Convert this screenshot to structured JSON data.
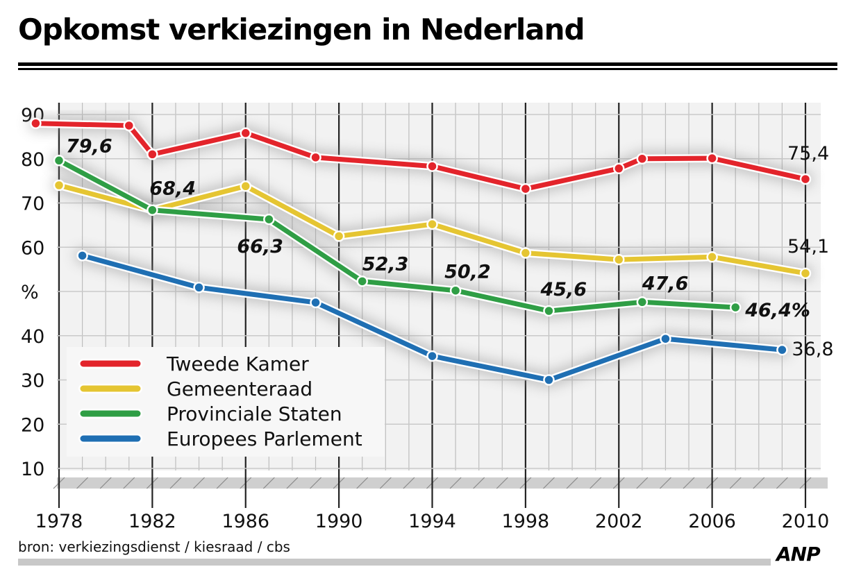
{
  "header": {
    "title": "Opkomst verkiezingen in Nederland"
  },
  "footer": {
    "source": "bron: verkiezingsdienst / kiesraad / cbs",
    "logo": "ANP"
  },
  "chart_data": {
    "type": "line",
    "title": "Opkomst verkiezingen in Nederland",
    "ylabel": "%",
    "ylim": [
      10,
      90
    ],
    "xlim": [
      1978,
      2010
    ],
    "y_ticks": [
      "10",
      "20",
      "30",
      "40",
      "%",
      "60",
      "70",
      "80",
      "90"
    ],
    "y_tick_values": [
      10,
      20,
      30,
      40,
      50,
      60,
      70,
      80,
      90
    ],
    "x_ticks": [
      "1978",
      "1982",
      "1986",
      "1990",
      "1994",
      "1998",
      "2002",
      "2006",
      "2010"
    ],
    "x_tick_values": [
      1978,
      1982,
      1986,
      1990,
      1994,
      1998,
      2002,
      2006,
      2010
    ],
    "grid": true,
    "legend_position": "bottom-left",
    "series": [
      {
        "name": "Tweede Kamer",
        "color": "#e3242b",
        "x": [
          1977,
          1981,
          1982,
          1986,
          1989,
          1994,
          1998,
          2002,
          2003,
          2006,
          2010
        ],
        "y": [
          88,
          87.5,
          81,
          85.8,
          80.3,
          78.3,
          73.2,
          77.8,
          80,
          80.1,
          75.4
        ]
      },
      {
        "name": "Gemeenteraad",
        "color": "#e5c532",
        "x": [
          1978,
          1982,
          1986,
          1990,
          1994,
          1998,
          2002,
          2006,
          2010
        ],
        "y": [
          74,
          68.4,
          73.8,
          62.5,
          65.2,
          58.7,
          57.2,
          57.8,
          54.1
        ]
      },
      {
        "name": "Provinciale Staten",
        "color": "#2f9e45",
        "x": [
          1978,
          1982,
          1987,
          1991,
          1995,
          1999,
          2003,
          2007
        ],
        "y": [
          79.6,
          68.4,
          66.3,
          52.3,
          50.2,
          45.6,
          47.6,
          46.4
        ]
      },
      {
        "name": "Europees Parlement",
        "color": "#1f6fb3",
        "x": [
          1979,
          1984,
          1989,
          1994,
          1999,
          2004,
          2009
        ],
        "y": [
          58.1,
          50.9,
          47.5,
          35.4,
          30,
          39.3,
          36.8
        ]
      }
    ],
    "annotations": [
      {
        "text": "79,6",
        "x": 1978,
        "y": 79.6,
        "series": "Provinciale Staten"
      },
      {
        "text": "68,4",
        "x": 1982,
        "y": 68.4,
        "series": "Provinciale Staten"
      },
      {
        "text": "66,3",
        "x": 1987,
        "y": 66.3,
        "series": "Provinciale Staten"
      },
      {
        "text": "52,3",
        "x": 1991,
        "y": 52.3,
        "series": "Provinciale Staten"
      },
      {
        "text": "50,2",
        "x": 1995,
        "y": 50.2,
        "series": "Provinciale Staten"
      },
      {
        "text": "45,6",
        "x": 1999,
        "y": 45.6,
        "series": "Provinciale Staten"
      },
      {
        "text": "47,6",
        "x": 2003,
        "y": 47.6,
        "series": "Provinciale Staten"
      },
      {
        "text": "46,4%",
        "x": 2007,
        "y": 46.4,
        "series": "Provinciale Staten"
      },
      {
        "text": "75,4",
        "x": 2010,
        "y": 75.4,
        "series": "Tweede Kamer"
      },
      {
        "text": "54,1",
        "x": 2010,
        "y": 54.1,
        "series": "Gemeenteraad"
      },
      {
        "text": "36,8",
        "x": 2009,
        "y": 36.8,
        "series": "Europees Parlement"
      }
    ]
  }
}
